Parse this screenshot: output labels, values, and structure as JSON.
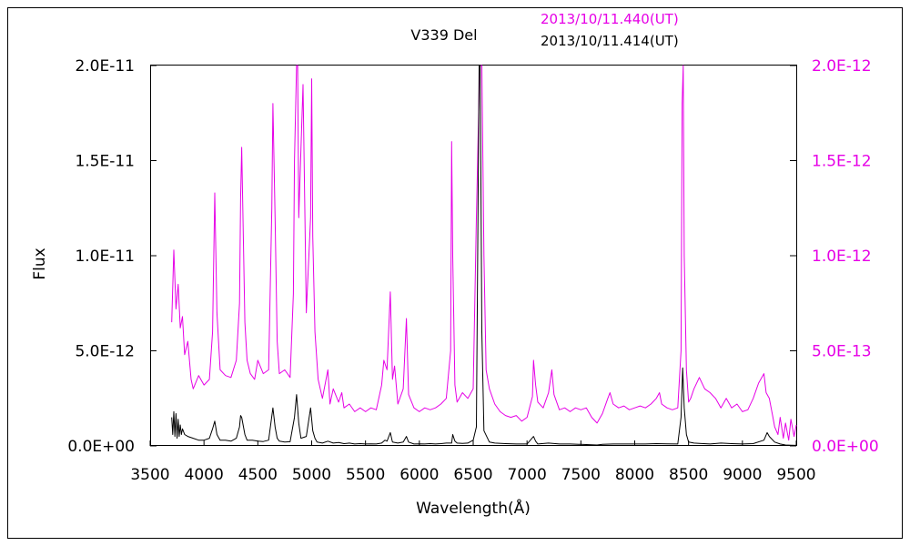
{
  "chart_data": {
    "type": "line",
    "title": "V339 Del",
    "xlabel": "Wavelength(Å)",
    "ylabel": "Flux",
    "xlim": [
      3500,
      9500
    ],
    "x_ticks": [
      3500,
      4000,
      4500,
      5000,
      5500,
      6000,
      6500,
      7000,
      7500,
      8000,
      8500,
      9000,
      9500
    ],
    "left_axis": {
      "ylim": [
        0,
        2e-11
      ],
      "tick_labels": [
        "0.0E+00",
        "5.0E-12",
        "1.0E-11",
        "1.5E-11",
        "2.0E-11"
      ],
      "color": "#000000"
    },
    "right_axis": {
      "ylim": [
        0,
        2e-12
      ],
      "tick_labels": [
        "0.0E+00",
        "5.0E-13",
        "1.0E-12",
        "1.5E-12",
        "2.0E-12"
      ],
      "color": "#e600e6"
    },
    "grid": false,
    "series": [
      {
        "name": "2013/10/11.440(UT)",
        "axis": "right",
        "color": "#e600e6",
        "x": [
          3700,
          3720,
          3740,
          3760,
          3780,
          3800,
          3820,
          3850,
          3880,
          3900,
          3950,
          4000,
          4050,
          4080,
          4100,
          4120,
          4150,
          4200,
          4250,
          4300,
          4330,
          4340,
          4350,
          4380,
          4400,
          4430,
          4470,
          4500,
          4550,
          4600,
          4630,
          4640,
          4660,
          4680,
          4700,
          4750,
          4800,
          4830,
          4840,
          4860,
          4870,
          4880,
          4920,
          4950,
          4990,
          5000,
          5010,
          5030,
          5060,
          5100,
          5150,
          5170,
          5200,
          5250,
          5280,
          5300,
          5350,
          5400,
          5450,
          5500,
          5550,
          5600,
          5650,
          5670,
          5700,
          5730,
          5750,
          5770,
          5800,
          5850,
          5880,
          5900,
          5950,
          6000,
          6050,
          6100,
          6150,
          6200,
          6250,
          6290,
          6300,
          6310,
          6330,
          6350,
          6400,
          6450,
          6500,
          6530,
          6560,
          6570,
          6580,
          6600,
          6620,
          6650,
          6700,
          6750,
          6800,
          6850,
          6900,
          6950,
          7000,
          7050,
          7060,
          7080,
          7100,
          7150,
          7200,
          7230,
          7250,
          7300,
          7350,
          7400,
          7450,
          7500,
          7550,
          7600,
          7650,
          7700,
          7750,
          7770,
          7800,
          7850,
          7900,
          7950,
          8000,
          8050,
          8100,
          8150,
          8200,
          8230,
          8250,
          8300,
          8350,
          8400,
          8430,
          8440,
          8450,
          8460,
          8480,
          8500,
          8520,
          8550,
          8600,
          8650,
          8700,
          8750,
          8800,
          8850,
          8900,
          8950,
          9000,
          9050,
          9100,
          9150,
          9200,
          9220,
          9250,
          9280,
          9300,
          9330,
          9350,
          9380,
          9400,
          9430,
          9450,
          9480,
          9500
        ],
        "y": [
          6.5e-13,
          1.03e-12,
          7.2e-13,
          8.5e-13,
          6.2e-13,
          6.8e-13,
          4.8e-13,
          5.5e-13,
          3.5e-13,
          3e-13,
          3.7e-13,
          3.2e-13,
          3.5e-13,
          6e-13,
          1.33e-12,
          7e-13,
          4e-13,
          3.7e-13,
          3.6e-13,
          4.5e-13,
          7.5e-13,
          1.3e-12,
          1.57e-12,
          6.5e-13,
          4.5e-13,
          3.8e-13,
          3.5e-13,
          4.5e-13,
          3.8e-13,
          4e-13,
          1.25e-12,
          1.8e-12,
          1.2e-12,
          5.5e-13,
          3.8e-13,
          4e-13,
          3.6e-13,
          8e-13,
          1.5e-12,
          2e-12,
          2e-12,
          1.2e-12,
          1.9e-12,
          7e-13,
          1.2e-12,
          1.93e-12,
          1.1e-12,
          6e-13,
          3.5e-13,
          2.5e-13,
          4e-13,
          2.2e-13,
          3e-13,
          2.3e-13,
          2.8e-13,
          2e-13,
          2.2e-13,
          1.8e-13,
          2e-13,
          1.8e-13,
          2e-13,
          1.9e-13,
          3.2e-13,
          4.5e-13,
          4e-13,
          8.1e-13,
          3.5e-13,
          4.2e-13,
          2.2e-13,
          3e-13,
          6.7e-13,
          2.7e-13,
          2e-13,
          1.8e-13,
          2e-13,
          1.9e-13,
          2e-13,
          2.2e-13,
          2.5e-13,
          5e-13,
          1.6e-12,
          1e-12,
          3.2e-13,
          2.3e-13,
          2.8e-13,
          2.5e-13,
          3e-13,
          1.2e-12,
          2e-12,
          2e-12,
          2e-12,
          1e-12,
          4e-13,
          3e-13,
          2.2e-13,
          1.8e-13,
          1.6e-13,
          1.5e-13,
          1.6e-13,
          1.3e-13,
          1.5e-13,
          2.6e-13,
          4.5e-13,
          3.2e-13,
          2.3e-13,
          2e-13,
          2.8e-13,
          4e-13,
          2.7e-13,
          1.9e-13,
          2e-13,
          1.8e-13,
          2e-13,
          1.9e-13,
          2e-13,
          1.5e-13,
          1.2e-13,
          1.7e-13,
          2.5e-13,
          2.8e-13,
          2.2e-13,
          2e-13,
          2.1e-13,
          1.9e-13,
          2e-13,
          2.1e-13,
          2e-13,
          2.2e-13,
          2.5e-13,
          2.8e-13,
          2.2e-13,
          2e-13,
          1.9e-13,
          2e-13,
          5e-13,
          1.8e-12,
          2e-12,
          1e-12,
          4e-13,
          2.3e-13,
          2.5e-13,
          3e-13,
          3.6e-13,
          3e-13,
          2.8e-13,
          2.5e-13,
          2e-13,
          2.5e-13,
          2e-13,
          2.2e-13,
          1.8e-13,
          1.9e-13,
          2.5e-13,
          3.3e-13,
          3.8e-13,
          2.8e-13,
          2.5e-13,
          1.6e-13,
          1e-13,
          6e-14,
          1.5e-13,
          4e-14,
          1.2e-13,
          3e-14,
          1.4e-13,
          5e-14,
          1.1e-13
        ]
      },
      {
        "name": "2013/10/11.414(UT)",
        "axis": "left",
        "color": "#000000",
        "x": [
          3700,
          3710,
          3720,
          3730,
          3740,
          3750,
          3760,
          3770,
          3780,
          3790,
          3800,
          3820,
          3850,
          3900,
          3950,
          4000,
          4050,
          4080,
          4100,
          4120,
          4150,
          4200,
          4250,
          4300,
          4330,
          4340,
          4350,
          4380,
          4400,
          4450,
          4500,
          4550,
          4600,
          4640,
          4660,
          4680,
          4700,
          4750,
          4800,
          4840,
          4860,
          4880,
          4900,
          4950,
          4990,
          5010,
          5030,
          5050,
          5100,
          5150,
          5200,
          5250,
          5300,
          5350,
          5400,
          5450,
          5500,
          5550,
          5600,
          5650,
          5680,
          5700,
          5730,
          5750,
          5800,
          5850,
          5880,
          5900,
          5950,
          6000,
          6050,
          6100,
          6150,
          6200,
          6250,
          6300,
          6310,
          6330,
          6350,
          6400,
          6450,
          6500,
          6530,
          6555,
          6565,
          6580,
          6600,
          6650,
          6700,
          6800,
          6900,
          7000,
          7060,
          7080,
          7100,
          7200,
          7300,
          7400,
          7500,
          7600,
          7650,
          7700,
          7800,
          7900,
          8000,
          8100,
          8200,
          8300,
          8400,
          8430,
          8445,
          8460,
          8480,
          8500,
          8550,
          8600,
          8700,
          8800,
          8900,
          9000,
          9100,
          9200,
          9230,
          9250,
          9300,
          9350,
          9400,
          9450,
          9500
        ],
        "y": [
          1.5e-12,
          6e-13,
          1.8e-12,
          5e-13,
          1.7e-12,
          4e-13,
          1.4e-12,
          5e-13,
          1.1e-12,
          6e-13,
          9e-13,
          6e-13,
          5e-13,
          4e-13,
          3e-13,
          3e-13,
          4e-13,
          9e-13,
          1.3e-12,
          6e-13,
          3e-13,
          3e-13,
          2.5e-13,
          4e-13,
          1e-12,
          1.6e-12,
          1.5e-12,
          6e-13,
          3e-13,
          3e-13,
          2.5e-13,
          2.3e-13,
          3e-13,
          2e-12,
          1e-12,
          4e-13,
          2.5e-13,
          2e-13,
          2.2e-13,
          1.5e-12,
          2.7e-12,
          1.2e-12,
          4e-13,
          5e-13,
          2e-12,
          8e-13,
          4e-13,
          2e-13,
          1.5e-13,
          2.5e-13,
          1.5e-13,
          1.8e-13,
          1.2e-13,
          1.5e-13,
          1e-13,
          1.2e-13,
          1e-13,
          1.1e-13,
          1e-13,
          1.5e-13,
          3e-13,
          2.5e-13,
          7e-13,
          2e-13,
          1.5e-13,
          2e-13,
          5e-13,
          2e-13,
          1e-13,
          1.1e-13,
          1e-13,
          1.2e-13,
          1e-13,
          1.2e-13,
          1.5e-13,
          1.5e-13,
          6e-13,
          2.5e-13,
          1.5e-13,
          1.3e-13,
          1.5e-13,
          3e-13,
          1e-12,
          2e-11,
          2e-11,
          6e-12,
          8e-13,
          2e-13,
          1.5e-13,
          1.2e-13,
          1e-13,
          1e-13,
          5e-13,
          2.5e-13,
          1e-13,
          1.5e-13,
          1e-13,
          1e-13,
          8e-14,
          6e-14,
          5e-14,
          8e-14,
          1e-13,
          1e-13,
          1e-13,
          1e-13,
          1.2e-13,
          1.1e-13,
          1e-13,
          1.5e-12,
          4.1e-12,
          2e-12,
          6e-13,
          2e-13,
          1.5e-13,
          1.3e-13,
          1e-13,
          1.5e-13,
          1.2e-13,
          1e-13,
          1.2e-13,
          3e-13,
          7e-13,
          5e-13,
          2e-13,
          1e-13,
          5e-14,
          4e-14,
          3e-14
        ]
      }
    ]
  }
}
